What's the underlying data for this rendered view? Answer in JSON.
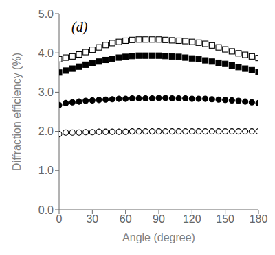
{
  "chart_data": {
    "type": "scatter",
    "xlabel": "Angle (degree)",
    "ylabel": "Diffraction efficiency (%)",
    "annotations": [
      "(d)"
    ],
    "xlim": [
      0,
      180
    ],
    "ylim": [
      0.0,
      5.0
    ],
    "xticks": [
      0,
      30,
      60,
      90,
      120,
      150,
      180
    ],
    "yticks": [
      {
        "value": 0,
        "label": "0.0"
      },
      {
        "value": 1,
        "label": "1.0"
      },
      {
        "value": 2,
        "label": "2.0"
      },
      {
        "value": 3,
        "label": "3.0"
      },
      {
        "value": 4,
        "label": "4.0"
      },
      {
        "value": 5,
        "label": "5.0"
      }
    ],
    "grid": false,
    "x": [
      0,
      6,
      12,
      18,
      24,
      30,
      36,
      42,
      48,
      54,
      60,
      66,
      72,
      78,
      84,
      90,
      96,
      102,
      108,
      114,
      120,
      126,
      132,
      138,
      144,
      150,
      156,
      162,
      168,
      174,
      180
    ],
    "series": [
      {
        "marker": "circle_open",
        "color": "#000000",
        "values": [
          1.93,
          1.97,
          1.97,
          1.97,
          1.98,
          1.98,
          1.99,
          1.99,
          1.99,
          1.99,
          1.99,
          2.0,
          2.0,
          2.0,
          2.0,
          2.0,
          2.0,
          2.0,
          2.0,
          2.0,
          2.0,
          2.0,
          2.0,
          2.0,
          2.0,
          2.0,
          2.0,
          2.0,
          2.0,
          2.0,
          2.0
        ]
      },
      {
        "marker": "circle",
        "color": "#000000",
        "values": [
          2.67,
          2.72,
          2.74,
          2.76,
          2.78,
          2.79,
          2.8,
          2.81,
          2.82,
          2.83,
          2.83,
          2.84,
          2.84,
          2.84,
          2.84,
          2.85,
          2.85,
          2.84,
          2.84,
          2.84,
          2.83,
          2.83,
          2.83,
          2.82,
          2.81,
          2.8,
          2.79,
          2.78,
          2.76,
          2.74,
          2.72
        ]
      },
      {
        "marker": "square_open",
        "color": "#000000",
        "values": [
          3.84,
          3.88,
          3.91,
          3.96,
          4.02,
          4.08,
          4.14,
          4.2,
          4.25,
          4.28,
          4.31,
          4.33,
          4.34,
          4.34,
          4.34,
          4.34,
          4.33,
          4.32,
          4.31,
          4.3,
          4.28,
          4.26,
          4.23,
          4.19,
          4.14,
          4.09,
          4.04,
          3.99,
          3.95,
          3.91,
          3.87
        ]
      },
      {
        "marker": "square",
        "color": "#000000",
        "values": [
          3.5,
          3.55,
          3.6,
          3.65,
          3.7,
          3.74,
          3.78,
          3.82,
          3.85,
          3.88,
          3.9,
          3.92,
          3.93,
          3.93,
          3.93,
          3.93,
          3.92,
          3.91,
          3.9,
          3.88,
          3.86,
          3.84,
          3.81,
          3.78,
          3.75,
          3.72,
          3.68,
          3.64,
          3.6,
          3.56,
          3.52
        ]
      }
    ]
  }
}
